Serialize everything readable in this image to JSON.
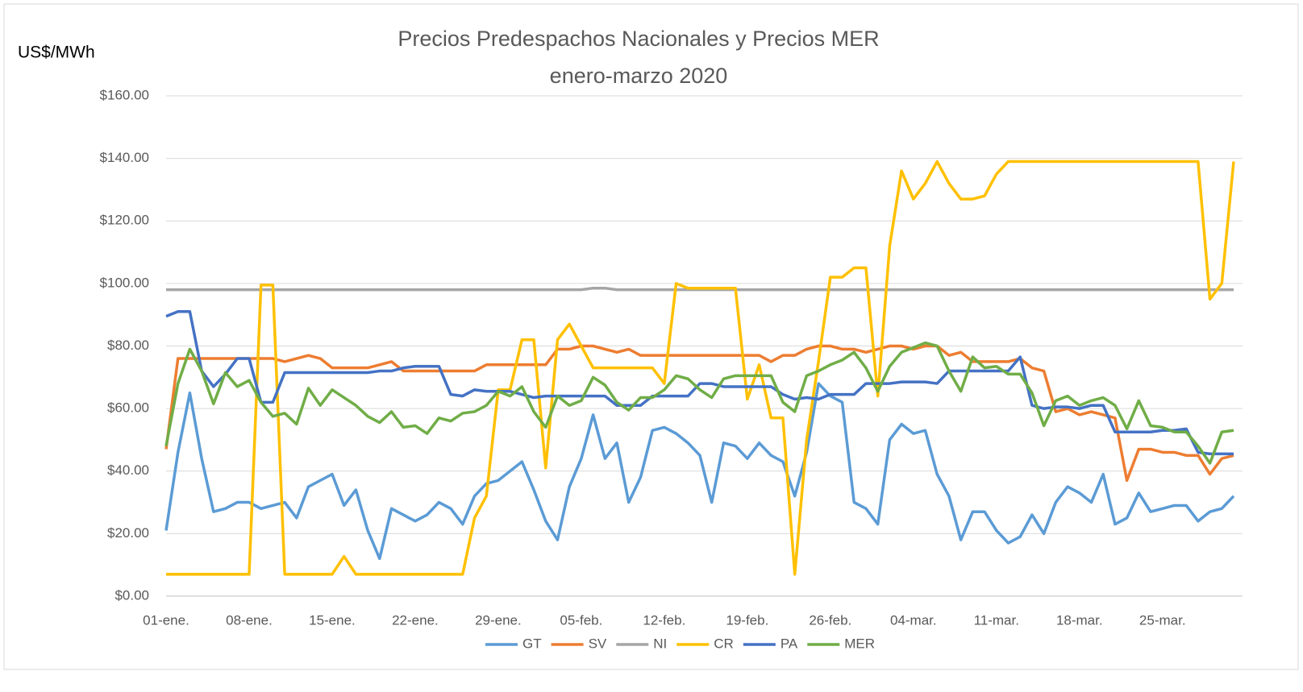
{
  "chart_data": {
    "type": "line",
    "title": "Precios Predespachos Nacionales y Precios MER",
    "subtitle": "enero-marzo 2020",
    "y_label": "US$/MWh",
    "categories": [
      "01-ene.",
      null,
      null,
      null,
      null,
      null,
      null,
      "08-ene.",
      null,
      null,
      null,
      null,
      null,
      null,
      "15-ene.",
      null,
      null,
      null,
      null,
      null,
      null,
      "22-ene.",
      null,
      null,
      null,
      null,
      null,
      null,
      "29-ene.",
      null,
      null,
      null,
      null,
      null,
      null,
      "05-feb.",
      null,
      null,
      null,
      null,
      null,
      null,
      "12-feb.",
      null,
      null,
      null,
      null,
      null,
      null,
      "19-feb.",
      null,
      null,
      null,
      null,
      null,
      null,
      "26-feb.",
      null,
      null,
      null,
      null,
      null,
      null,
      "04-mar.",
      null,
      null,
      null,
      null,
      null,
      null,
      "11-mar.",
      null,
      null,
      null,
      null,
      null,
      null,
      "18-mar.",
      null,
      null,
      null,
      null,
      null,
      null,
      "25-mar.",
      null,
      null,
      null,
      null,
      null,
      null
    ],
    "series": [
      {
        "name": "GT",
        "color": "#5b9bd5",
        "values": [
          21,
          46,
          65,
          44,
          27,
          28,
          30,
          30,
          28,
          29,
          30,
          25,
          35,
          37,
          39,
          29,
          34,
          21,
          12,
          28,
          26,
          24,
          26,
          30,
          28,
          23,
          32,
          36,
          37,
          40,
          43,
          34,
          24,
          18,
          35,
          44,
          58,
          44,
          49,
          30,
          38,
          53,
          54,
          52,
          49,
          45,
          30,
          49,
          48,
          44,
          49,
          45,
          43,
          32,
          46,
          68,
          64,
          62,
          30,
          28,
          23,
          50,
          55,
          52,
          53,
          39,
          32,
          18,
          27,
          27,
          21,
          17,
          19,
          26,
          20,
          30,
          35,
          33,
          30,
          39,
          23,
          25,
          33,
          27,
          28,
          29,
          29,
          24,
          27,
          28,
          32
        ]
      },
      {
        "name": "SV",
        "color": "#ed7d31",
        "values": [
          47,
          76,
          76,
          76,
          76,
          76,
          76,
          76,
          76,
          76,
          75,
          76,
          77,
          76,
          73,
          73,
          73,
          73,
          74,
          75,
          72,
          72,
          72,
          72,
          72,
          72,
          72,
          74,
          74,
          74,
          74,
          74,
          74,
          79,
          79,
          80,
          80,
          79,
          78,
          79,
          77,
          77,
          77,
          77,
          77,
          77,
          77,
          77,
          77,
          77,
          77,
          75,
          77,
          77,
          79,
          80,
          80,
          79,
          79,
          78,
          79,
          80,
          80,
          79,
          80,
          80,
          77,
          78,
          75,
          75,
          75,
          75,
          76,
          73,
          72,
          59,
          60,
          58,
          59,
          58,
          57,
          37,
          47,
          47,
          46,
          46,
          45,
          45,
          39,
          44,
          45
        ]
      },
      {
        "name": "NI",
        "color": "#a5a5a5",
        "values": [
          98,
          98,
          98,
          98,
          98,
          98,
          98,
          98,
          98,
          98,
          98,
          98,
          98,
          98,
          98,
          98,
          98,
          98,
          98,
          98,
          98,
          98,
          98,
          98,
          98,
          98,
          98,
          98,
          98,
          98,
          98,
          98,
          98,
          98,
          98,
          98,
          98.5,
          98.5,
          98,
          98,
          98,
          98,
          98,
          98,
          98,
          98,
          98,
          98,
          98,
          98,
          98,
          98,
          98,
          98,
          98,
          98,
          98,
          98,
          98,
          98,
          98,
          98,
          98,
          98,
          98,
          98,
          98,
          98,
          98,
          98,
          98,
          98,
          98,
          98,
          98,
          98,
          98,
          98,
          98,
          98,
          98,
          98,
          98,
          98,
          98,
          98,
          98,
          98,
          98,
          98,
          98
        ]
      },
      {
        "name": "CR",
        "color": "#ffc000",
        "values": [
          7,
          7,
          7,
          7,
          7,
          7,
          7,
          7,
          99.5,
          99.5,
          7,
          7,
          7,
          7,
          7,
          12.7,
          7,
          7,
          7,
          7,
          7,
          7,
          7,
          7,
          7,
          7,
          25,
          32,
          66,
          66,
          82,
          82,
          41,
          82,
          87,
          80,
          73,
          73,
          73,
          73,
          73,
          73,
          68,
          100,
          98.5,
          98.5,
          98.5,
          98.5,
          98.5,
          63,
          74,
          57,
          57,
          7,
          50,
          75,
          102,
          102,
          105,
          105,
          64,
          112,
          136,
          127,
          132,
          139,
          132,
          127,
          127,
          128,
          135,
          139,
          139,
          139,
          139,
          139,
          139,
          139,
          139,
          139,
          139,
          139,
          139,
          139,
          139,
          139,
          139,
          139,
          95,
          100,
          139
        ]
      },
      {
        "name": "PA",
        "color": "#4472c4",
        "values": [
          89.5,
          91,
          91,
          72,
          67,
          71,
          76,
          76,
          62,
          62,
          71.5,
          71.5,
          71.5,
          71.5,
          71.5,
          71.5,
          71.5,
          71.5,
          72,
          72,
          73,
          73.5,
          73.5,
          73.5,
          64.5,
          64,
          66,
          65.5,
          65.5,
          65.5,
          64.5,
          63.5,
          64,
          64,
          64,
          64,
          64,
          64,
          61,
          61,
          61,
          64,
          64,
          64,
          64,
          68,
          68,
          67,
          67,
          67,
          67,
          67,
          64.5,
          63,
          63.5,
          63,
          64.5,
          64.5,
          64.5,
          68,
          68,
          68,
          68.5,
          68.5,
          68.5,
          68,
          72,
          72,
          72,
          72,
          72,
          72,
          76.5,
          61,
          60,
          60.5,
          60.5,
          60,
          61,
          61,
          52.5,
          52.5,
          52.5,
          52.5,
          53,
          53,
          53.5,
          46,
          45.5,
          45.5,
          45.5
        ]
      },
      {
        "name": "MER",
        "color": "#70ad47",
        "values": [
          48,
          68,
          79,
          72,
          61.5,
          71.5,
          67,
          69,
          62,
          57.5,
          58.5,
          55,
          66.5,
          61,
          66,
          63.5,
          61,
          57.5,
          55.5,
          59,
          54,
          54.5,
          52,
          57,
          56,
          58.5,
          59,
          61,
          65.5,
          64,
          67,
          59,
          54,
          64,
          61,
          62.5,
          70,
          67.5,
          62,
          59.5,
          63.5,
          63.5,
          66,
          70.5,
          69.5,
          66,
          63.5,
          69.5,
          70.5,
          70.5,
          70.5,
          70.5,
          62,
          59,
          70.5,
          72,
          74,
          75.5,
          78,
          73,
          65.5,
          73.5,
          78,
          79.5,
          81,
          80,
          72,
          65.5,
          76.5,
          73,
          73.5,
          71,
          71,
          65,
          54.5,
          62.5,
          64,
          61,
          62.5,
          63.5,
          61,
          53.5,
          62.5,
          54.5,
          54,
          52.5,
          52.5,
          48,
          42.5,
          52.5,
          53
        ]
      }
    ],
    "ylim": [
      0,
      160
    ],
    "yticks": [
      {
        "value": 0,
        "label": "$0.00"
      },
      {
        "value": 20,
        "label": "$20.00"
      },
      {
        "value": 40,
        "label": "$40.00"
      },
      {
        "value": 60,
        "label": "$60.00"
      },
      {
        "value": 80,
        "label": "$80.00"
      },
      {
        "value": 100,
        "label": "$100.00"
      },
      {
        "value": 120,
        "label": "$120.00"
      },
      {
        "value": 140,
        "label": "$140.00"
      },
      {
        "value": 160,
        "label": "$160.00"
      }
    ],
    "grid": true,
    "legend": "bottom"
  }
}
